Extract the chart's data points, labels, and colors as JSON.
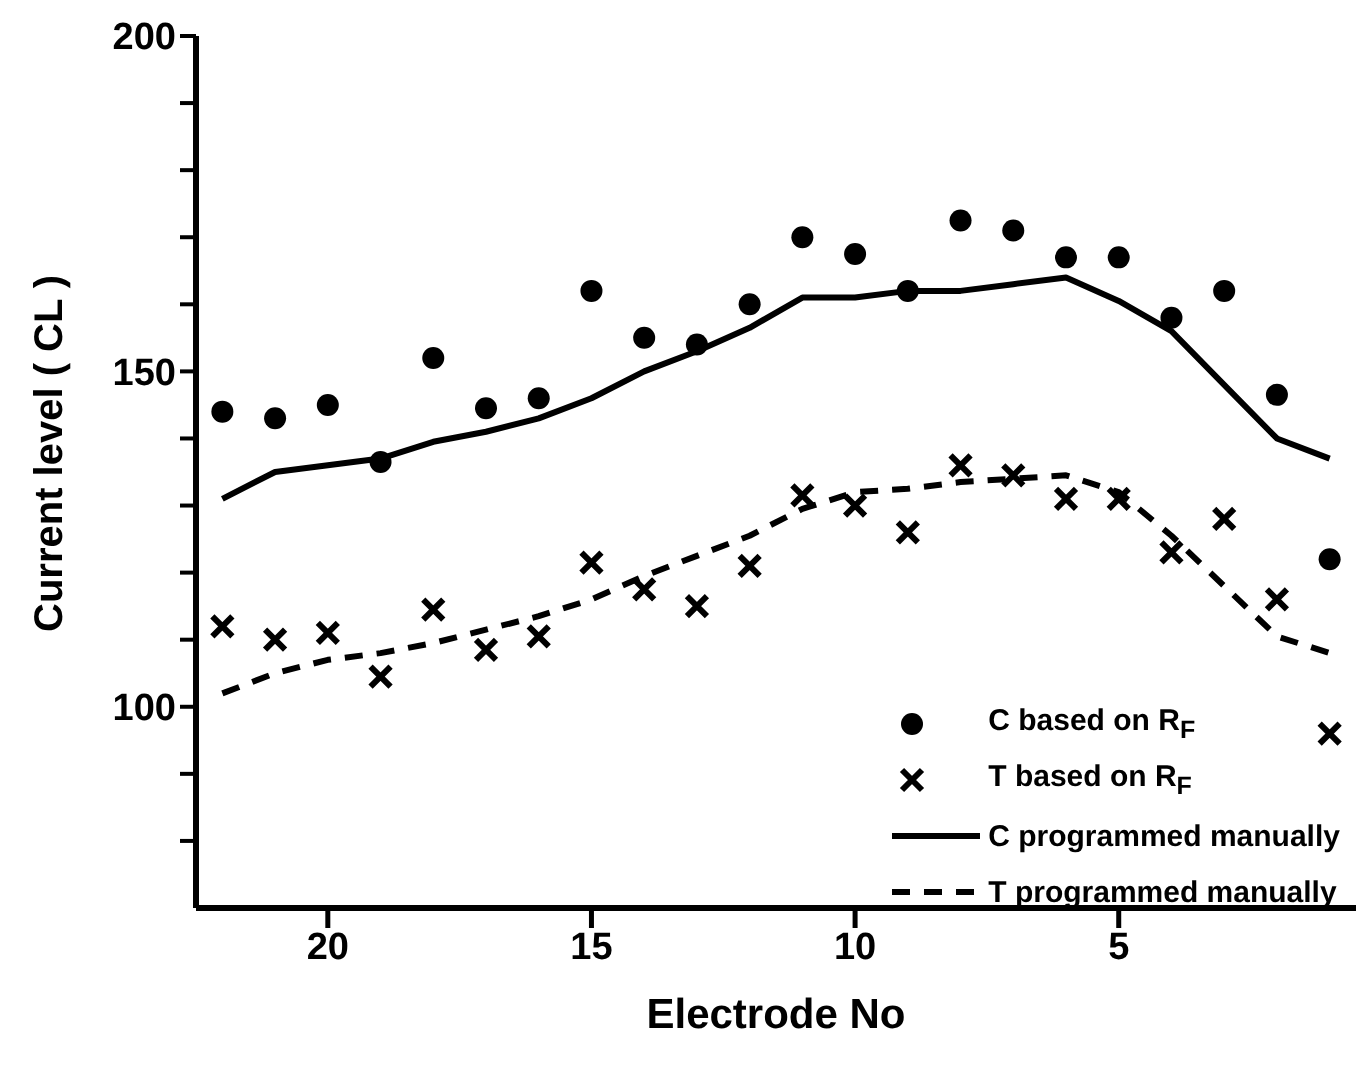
{
  "chart_data": {
    "type": "scatter",
    "xlabel": "Electrode No",
    "ylabel": "Current level ( CL )",
    "x": [
      22,
      21,
      20,
      19,
      18,
      17,
      16,
      15,
      14,
      13,
      12,
      11,
      10,
      9,
      8,
      7,
      6,
      5,
      4,
      3,
      2,
      1
    ],
    "series": [
      {
        "name": "C based on R$_{F}$",
        "marker": "circle",
        "color": "#000000",
        "values": [
          144,
          143,
          145,
          136.5,
          152,
          144.5,
          146,
          162,
          155,
          154,
          160,
          170,
          167.5,
          162,
          172.5,
          171,
          167,
          167,
          158,
          162,
          146.5,
          122
        ]
      },
      {
        "name": "T based on R$_{F}$",
        "marker": "cross",
        "color": "#000000",
        "values": [
          112,
          110,
          111,
          104.5,
          114.5,
          108.5,
          110.5,
          121.5,
          117.5,
          115,
          121,
          131.5,
          130,
          126,
          136,
          134.5,
          131,
          131,
          123,
          128,
          116,
          96
        ]
      },
      {
        "name": "C programmed manually",
        "type": "line",
        "marker": "none",
        "line_style": "solid",
        "color": "#000000",
        "values": [
          131,
          135,
          136,
          137,
          139.5,
          141,
          143,
          146,
          150,
          153,
          156.5,
          161,
          161,
          162,
          162,
          163,
          164,
          160.5,
          156,
          148,
          140,
          137
        ]
      },
      {
        "name": "T programmed manually",
        "type": "line",
        "marker": "none",
        "line_style": "dashed",
        "color": "#000000",
        "values": [
          102,
          105,
          107,
          108,
          109.5,
          111.5,
          113.5,
          116,
          119.5,
          122.5,
          125.5,
          129.5,
          132,
          132.5,
          133.5,
          134,
          134.5,
          132,
          125.5,
          118,
          110.5,
          108
        ]
      }
    ],
    "xlim": [
      22.5,
      0.5
    ],
    "xticks": [
      20,
      15,
      10,
      5
    ],
    "ylim": [
      70,
      200
    ],
    "yticks": [
      {
        "value": 80,
        "label": null
      },
      {
        "value": 90,
        "label": null
      },
      100,
      {
        "value": 110,
        "label": null
      },
      {
        "value": 120,
        "label": null
      },
      {
        "value": 130,
        "label": null
      },
      {
        "value": 140,
        "label": null
      },
      150,
      {
        "value": 160,
        "label": null
      },
      {
        "value": 170,
        "label": null
      },
      {
        "value": 180,
        "label": null
      },
      {
        "value": 190,
        "label": null
      },
      200
    ],
    "grid": false,
    "legend": "bottom right"
  }
}
